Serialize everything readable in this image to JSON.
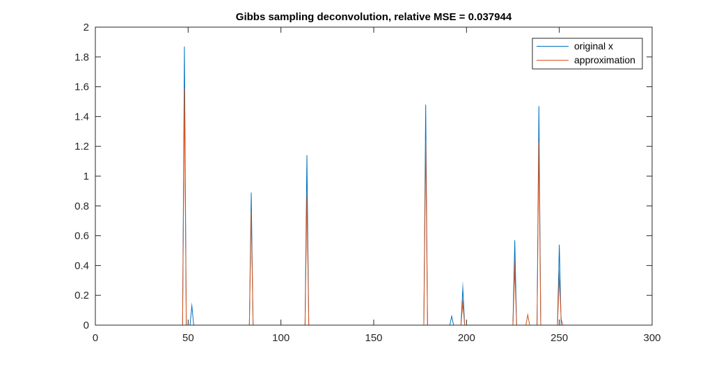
{
  "chart_data": {
    "type": "line",
    "title": "Gibbs sampling deconvolution, relative MSE = 0.037944",
    "xlabel": "",
    "ylabel": "",
    "xlim": [
      0,
      300
    ],
    "ylim": [
      0,
      2
    ],
    "x_ticks": [
      0,
      50,
      100,
      150,
      200,
      250,
      300
    ],
    "y_ticks": [
      0,
      0.2,
      0.4,
      0.6,
      0.8,
      1,
      1.2,
      1.4,
      1.6,
      1.8,
      2
    ],
    "x_tick_labels": [
      "0",
      "50",
      "100",
      "150",
      "200",
      "250",
      "300"
    ],
    "y_tick_labels": [
      "0",
      "0.2",
      "0.4",
      "0.6",
      "0.8",
      "1",
      "1.2",
      "1.4",
      "1.6",
      "1.8",
      "2"
    ],
    "grid": false,
    "legend_position": "top-right",
    "series": [
      {
        "name": "original x",
        "color": "#0072BD",
        "points": [
          [
            1,
            0
          ],
          [
            47,
            0
          ],
          [
            48,
            1.87
          ],
          [
            49,
            0
          ],
          [
            51,
            0
          ],
          [
            52,
            0.13
          ],
          [
            53,
            0
          ],
          [
            83,
            0
          ],
          [
            84,
            0.89
          ],
          [
            85,
            0
          ],
          [
            113,
            0
          ],
          [
            114,
            1.14
          ],
          [
            115,
            0
          ],
          [
            177,
            0
          ],
          [
            178,
            1.48
          ],
          [
            179,
            0
          ],
          [
            191,
            0
          ],
          [
            192,
            0.06
          ],
          [
            193,
            0
          ],
          [
            197,
            0
          ],
          [
            198,
            0.25
          ],
          [
            199,
            0
          ],
          [
            225,
            0
          ],
          [
            226,
            0.57
          ],
          [
            227,
            0
          ],
          [
            238,
            0
          ],
          [
            239,
            1.47
          ],
          [
            240,
            0
          ],
          [
            249,
            0
          ],
          [
            250,
            0.54
          ],
          [
            251,
            0
          ],
          [
            256,
            0
          ]
        ]
      },
      {
        "name": "approximation",
        "color": "#D95319",
        "points": [
          [
            1,
            0
          ],
          [
            47,
            0
          ],
          [
            48,
            1.59
          ],
          [
            49,
            0
          ],
          [
            83,
            0
          ],
          [
            84,
            0.76
          ],
          [
            85,
            0
          ],
          [
            113,
            0
          ],
          [
            114,
            0.87
          ],
          [
            115,
            0
          ],
          [
            177,
            0
          ],
          [
            178,
            1.24
          ],
          [
            179,
            0
          ],
          [
            197,
            0
          ],
          [
            198,
            0.15
          ],
          [
            199,
            0
          ],
          [
            225,
            0
          ],
          [
            226,
            0.38
          ],
          [
            227,
            0
          ],
          [
            232,
            0
          ],
          [
            233,
            0.07
          ],
          [
            234,
            0
          ],
          [
            238,
            0
          ],
          [
            239,
            1.23
          ],
          [
            240,
            0
          ],
          [
            249,
            0
          ],
          [
            250,
            0.32
          ],
          [
            251,
            0.04
          ],
          [
            252,
            0
          ],
          [
            256,
            0
          ]
        ]
      }
    ]
  }
}
